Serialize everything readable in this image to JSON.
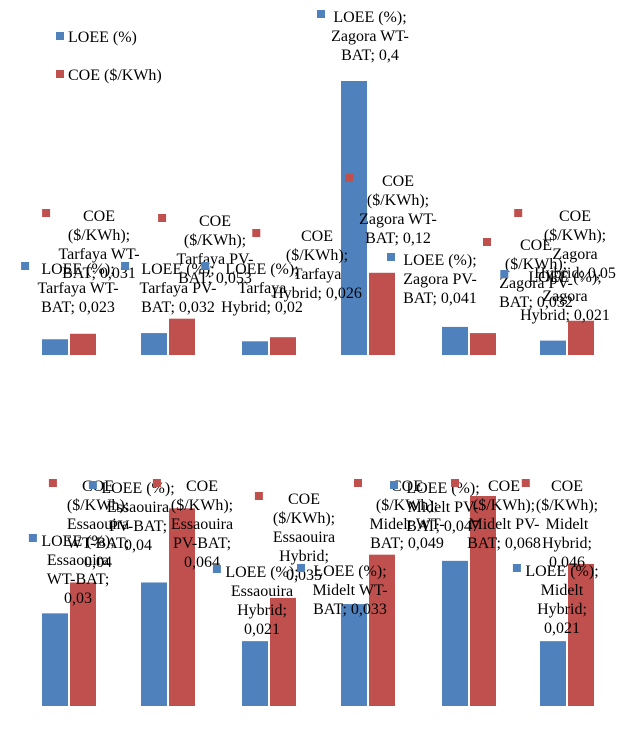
{
  "colors": {
    "loee": "#4F81BD",
    "coe": "#C0504D"
  },
  "legend": {
    "items": [
      {
        "label": "LOEE (%)",
        "color": "#4F81BD"
      },
      {
        "label": "COE ($/KWh)",
        "color": "#C0504D"
      }
    ],
    "placement": "top-left"
  },
  "chart_data": [
    {
      "type": "bar",
      "categories": [
        "Tarfaya WT-BAT",
        "Tarfaya PV-BAT",
        "Tarfaya Hybrid",
        "Zagora WT-BAT",
        "Zagora PV-BAT",
        "Zagora Hybrid"
      ],
      "series": [
        {
          "name": "LOEE (%)",
          "values": [
            0.023,
            0.032,
            0.02,
            0.4,
            0.041,
            0.021
          ]
        },
        {
          "name": "COE ($/KWh)",
          "values": [
            0.031,
            0.053,
            0.026,
            0.12,
            0.032,
            0.05
          ]
        }
      ],
      "data_labels": [
        [
          "LOEE (%);\nTarfaya WT-\nBAT; 0,023",
          "LOEE (%);\nTarfaya PV-\nBAT; 0,032",
          "LOEE (%);\nTarfaya\nHybrid; 0,02",
          "LOEE (%);\nZagora WT-\nBAT; 0,4",
          "LOEE (%);\nZagora PV-\nBAT; 0,041",
          "LOEE (%);\nZagora\nHybrid; 0,021"
        ],
        [
          "COE\n($/KWh);\nTarfaya WT-\nBAT; 0,031",
          "COE\n($/KWh);\nTarfaya PV-\nBAT; 0,053",
          "COE\n($/KWh);\nTarfaya\nHybrid; 0,026",
          "COE\n($/KWh);\nZagora WT-\nBAT; 0,12",
          "COE\n($/KWh);\nZagora PV-\nBAT; 0,032",
          "COE\n($/KWh);\nZagora\nHybrid; 0,05"
        ]
      ],
      "ylim": [
        0,
        0.4
      ],
      "grid": false,
      "legend": "top-left"
    },
    {
      "type": "bar",
      "categories": [
        "Essaouira WT-BAT",
        "Essaouira PV-BAT",
        "Essaouira Hybrid",
        "Midelt WT-BAT",
        "Midelt PV-BAT",
        "Midelt Hybrid"
      ],
      "series": [
        {
          "name": "LOEE (%)",
          "values": [
            0.03,
            0.04,
            0.021,
            0.033,
            0.047,
            0.021
          ]
        },
        {
          "name": "COE ($/KWh)",
          "values": [
            0.04,
            0.064,
            0.035,
            0.049,
            0.068,
            0.046
          ]
        }
      ],
      "data_labels": [
        [
          "LOEE (%);\nEssaouira\nWT-BAT;\n0,03",
          "LOEE (%);\nEssaouira\nPV-BAT;\n0,04",
          "LOEE (%);\nEssaouira\nHybrid;\n0,021",
          "LOEE (%);\nMidelt WT-\nBAT; 0,033",
          "LOEE (%);\nMidelt PV-\nBAT; 0,047",
          "LOEE (%);\nMidelt\nHybrid;\n0,021"
        ],
        [
          "COE\n($/KWh);\nEssaouira\nWT-BAT;\n0,04",
          "COE\n($/KWh);\nEssaouira\nPV-BAT;\n0,064",
          "COE\n($/KWh);\nEssaouira\nHybrid;\n0,035",
          "COE\n($/KWh);\nMidelt WT-\nBAT; 0,049",
          "COE\n($/KWh);\nMidelt PV-\nBAT; 0,068",
          "COE\n($/KWh);\nMidelt\nHybrid;\n0,046"
        ]
      ],
      "ylim": [
        0,
        0.068
      ],
      "grid": false,
      "legend": "none"
    }
  ]
}
